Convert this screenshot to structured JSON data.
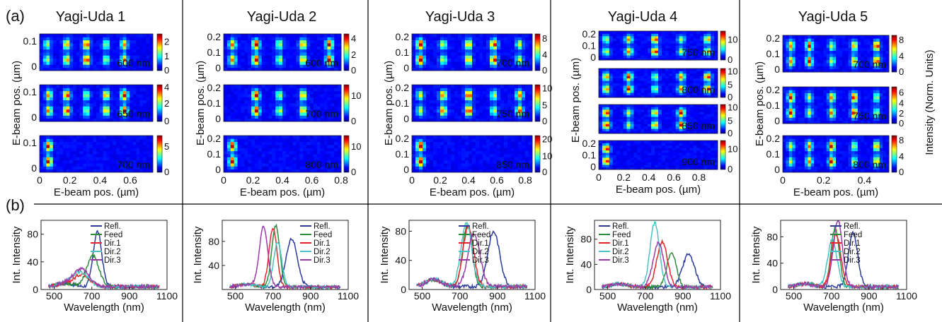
{
  "panel_labels": {
    "a": "(a)",
    "b": "(b)"
  },
  "common": {
    "ylabel_map": "E-beam pos. (µm)",
    "xlabel_map": "E-beam pos. (µm)",
    "colorbar_label": "Intensity (Norm. Units)",
    "spectra_ylabel": "Int. Intensity",
    "spectra_xlabel": "Wavelength (nm)",
    "legend": [
      "Refl.",
      "Feed",
      "Dir.1",
      "Dir.2",
      "Dir.3"
    ],
    "colors": {
      "Refl.": "#2b3a9c",
      "Feed": "#2e8b3c",
      "Dir.1": "#e4262a",
      "Dir.2": "#47c2c4",
      "Dir.3": "#9b3aa6"
    },
    "colormap": "jet"
  },
  "chart_data": [
    {
      "type": "heatmap",
      "title": "Yagi-Uda 1",
      "xticks": [
        "0",
        "0.2",
        "0.4",
        "0.6"
      ],
      "xlim": [
        0,
        0.75
      ],
      "maps": [
        {
          "label": "600 nm",
          "yticks": [
            "0.1",
            "0"
          ],
          "colorbar_ticks": [
            "2",
            "1",
            "0"
          ],
          "cbar_max": 2.5,
          "hotspots_x": [
            0.05,
            0.18,
            0.31,
            0.44,
            0.56
          ]
        },
        {
          "label": "650 nm",
          "yticks": [
            "0.1",
            "0"
          ],
          "colorbar_ticks": [
            "4",
            "2",
            "0"
          ],
          "cbar_max": 4,
          "hotspots_x": [
            0.06,
            0.18,
            0.31,
            0.44,
            0.56
          ]
        },
        {
          "label": "700 nm",
          "yticks": [
            "0.1",
            "0"
          ],
          "colorbar_ticks": [
            "5",
            "0"
          ],
          "cbar_max": 7,
          "hotspots_x": [
            0.06
          ]
        }
      ]
    },
    {
      "type": "heatmap",
      "title": "Yagi-Uda 2",
      "xticks": [
        "0",
        "0.2",
        "0.4",
        "0.6",
        "0.8"
      ],
      "xlim": [
        0,
        0.8
      ],
      "maps": [
        {
          "label": "600 nm",
          "yticks": [
            "0.2",
            "0.1",
            "0"
          ],
          "colorbar_ticks": [
            "4",
            "2",
            "0"
          ],
          "cbar_max": 4.5,
          "hotspots_x": [
            0.06,
            0.22,
            0.38,
            0.54,
            0.72
          ]
        },
        {
          "label": "700 nm",
          "yticks": [
            "0.2",
            "0.1",
            "0"
          ],
          "colorbar_ticks": [
            "10",
            "0"
          ],
          "cbar_max": 14,
          "hotspots_x": [
            0.22,
            0.38,
            0.54
          ]
        },
        {
          "label": "800 nm",
          "yticks": [
            "0.2",
            "0.1",
            "0"
          ],
          "colorbar_ticks": [
            "10",
            "0"
          ],
          "cbar_max": 14,
          "hotspots_x": [
            0.06
          ]
        }
      ]
    },
    {
      "type": "heatmap",
      "title": "Yagi-Uda 3",
      "xticks": [
        "0",
        "0.2",
        "0.4",
        "0.6",
        "0.8"
      ],
      "xlim": [
        0,
        0.85
      ],
      "maps": [
        {
          "label": "700 nm",
          "yticks": [
            "0.2",
            "0.1",
            "0"
          ],
          "colorbar_ticks": [
            "8",
            "4",
            "0"
          ],
          "cbar_max": 9,
          "hotspots_x": [
            0.06,
            0.22,
            0.4,
            0.58,
            0.76
          ]
        },
        {
          "label": "750 nm",
          "yticks": [
            "0.2",
            "0.1",
            "0"
          ],
          "colorbar_ticks": [
            "10",
            "5",
            "0"
          ],
          "cbar_max": 11,
          "hotspots_x": [
            0.06,
            0.22,
            0.4,
            0.58,
            0.76
          ]
        },
        {
          "label": "850 nm",
          "yticks": [
            "0.2",
            "0.1",
            "0"
          ],
          "colorbar_ticks": [
            "20",
            "10",
            "0"
          ],
          "cbar_max": 22,
          "hotspots_x": [
            0.06
          ]
        }
      ]
    },
    {
      "type": "heatmap",
      "title": "Yagi-Uda 4",
      "xticks": [
        "0",
        "0.2",
        "0.4",
        "0.6",
        "0.8"
      ],
      "xlim": [
        0,
        0.95
      ],
      "maps": [
        {
          "label": "750 nm",
          "yticks": [
            "0.2",
            "0.1",
            "0"
          ],
          "colorbar_ticks": [
            "10",
            "0"
          ],
          "cbar_max": 14,
          "hotspots_x": [
            0.06,
            0.24,
            0.45,
            0.66,
            0.87
          ]
        },
        {
          "label": "800 nm",
          "yticks": [],
          "colorbar_ticks": [
            "10",
            "5",
            "0"
          ],
          "cbar_max": 11,
          "hotspots_x": [
            0.06,
            0.24,
            0.45,
            0.66,
            0.87
          ]
        },
        {
          "label": "850 nm",
          "yticks": [],
          "colorbar_ticks": [
            "10",
            "5",
            "0"
          ],
          "cbar_max": 11,
          "hotspots_x": [
            0.06,
            0.24,
            0.45,
            0.66
          ]
        },
        {
          "label": "900 nm",
          "yticks": [
            "0.2",
            "0.1",
            "0"
          ],
          "colorbar_ticks": [
            "10",
            "0"
          ],
          "cbar_max": 14,
          "hotspots_x": [
            0.06
          ]
        }
      ]
    },
    {
      "type": "heatmap",
      "title": "Yagi-Uda 5",
      "xticks": [
        "0",
        "0.2",
        "0.4"
      ],
      "xlim": [
        0,
        0.52
      ],
      "maps": [
        {
          "label": "700 nm",
          "yticks": [
            "0.2",
            "0.1",
            "0"
          ],
          "colorbar_ticks": [
            "8",
            "4",
            "0"
          ],
          "cbar_max": 9,
          "hotspots_x": [
            0.04,
            0.13,
            0.24,
            0.35,
            0.46
          ]
        },
        {
          "label": "750 nm",
          "yticks": [
            "0.2",
            "0.1",
            "0"
          ],
          "colorbar_ticks": [
            "6",
            "4",
            "2",
            "0"
          ],
          "cbar_max": 7,
          "hotspots_x": [
            0.04,
            0.13,
            0.24,
            0.35,
            0.46
          ]
        },
        {
          "label": "800 nm",
          "yticks": [
            "0.2",
            "0.1",
            "0"
          ],
          "colorbar_ticks": [
            "8",
            "4",
            "0"
          ],
          "cbar_max": 9,
          "hotspots_x": [
            0.04,
            0.13,
            0.24,
            0.35,
            0.46
          ]
        }
      ]
    },
    {
      "type": "line",
      "xlim": [
        430,
        1100
      ],
      "ylim": [
        0,
        100
      ],
      "xticks": [
        "500",
        "700",
        "900",
        "1100"
      ],
      "yticks": [
        "0",
        "40",
        "80"
      ],
      "series": [
        {
          "name": "Refl.",
          "peak": 730,
          "height": 80,
          "width": 32
        },
        {
          "name": "Feed",
          "peak": 705,
          "height": 46,
          "width": 45
        },
        {
          "name": "Dir.1",
          "peak": 650,
          "height": 18,
          "width": 55
        },
        {
          "name": "Dir.2",
          "peak": 640,
          "height": 20,
          "width": 60
        },
        {
          "name": "Dir.3",
          "peak": 645,
          "height": 25,
          "width": 60
        }
      ]
    },
    {
      "type": "line",
      "xlim": [
        430,
        1100
      ],
      "ylim": [
        0,
        115
      ],
      "xticks": [
        "500",
        "700",
        "900",
        "1100"
      ],
      "yticks": [
        "40",
        "80"
      ],
      "series": [
        {
          "name": "Refl.",
          "peak": 800,
          "height": 80,
          "width": 42
        },
        {
          "name": "Feed",
          "peak": 715,
          "height": 103,
          "width": 30
        },
        {
          "name": "Dir.1",
          "peak": 700,
          "height": 98,
          "width": 30
        },
        {
          "name": "Dir.2",
          "peak": 725,
          "height": 75,
          "width": 30
        },
        {
          "name": "Dir.3",
          "peak": 650,
          "height": 100,
          "width": 32
        }
      ]
    },
    {
      "type": "line",
      "xlim": [
        430,
        1100
      ],
      "ylim": [
        0,
        95
      ],
      "xticks": [
        "500",
        "700",
        "900",
        "1100"
      ],
      "yticks": [
        "0",
        "40",
        "80"
      ],
      "series": [
        {
          "name": "Refl.",
          "peak": 880,
          "height": 75,
          "width": 45
        },
        {
          "name": "Feed",
          "peak": 740,
          "height": 85,
          "width": 35
        },
        {
          "name": "Dir.1",
          "peak": 745,
          "height": 82,
          "width": 40
        },
        {
          "name": "Dir.2",
          "peak": 735,
          "height": 88,
          "width": 40
        },
        {
          "name": "Dir.3",
          "peak": 775,
          "height": 73,
          "width": 45
        }
      ]
    },
    {
      "type": "line",
      "xlim": [
        430,
        1100
      ],
      "ylim": [
        0,
        110
      ],
      "xticks": [
        "500",
        "700",
        "900",
        "1100"
      ],
      "yticks": [
        "0",
        "40",
        "80"
      ],
      "series": [
        {
          "name": "Refl.",
          "peak": 930,
          "height": 52,
          "width": 45
        },
        {
          "name": "Feed",
          "peak": 840,
          "height": 55,
          "width": 35
        },
        {
          "name": "Dir.1",
          "peak": 790,
          "height": 72,
          "width": 40
        },
        {
          "name": "Dir.2",
          "peak": 750,
          "height": 102,
          "width": 35
        },
        {
          "name": "Dir.3",
          "peak": 770,
          "height": 70,
          "width": 40
        }
      ]
    },
    {
      "type": "line",
      "xlim": [
        430,
        1100
      ],
      "ylim": [
        0,
        105
      ],
      "xticks": [
        "500",
        "700",
        "900",
        "1100"
      ],
      "yticks": [
        "0",
        "40",
        "80"
      ],
      "series": [
        {
          "name": "Refl.",
          "peak": 815,
          "height": 82,
          "width": 35
        },
        {
          "name": "Feed",
          "peak": 720,
          "height": 90,
          "width": 30
        },
        {
          "name": "Dir.1",
          "peak": 725,
          "height": 80,
          "width": 35
        },
        {
          "name": "Dir.2",
          "peak": 705,
          "height": 72,
          "width": 35
        },
        {
          "name": "Dir.3",
          "peak": 735,
          "height": 100,
          "width": 35
        }
      ]
    }
  ]
}
